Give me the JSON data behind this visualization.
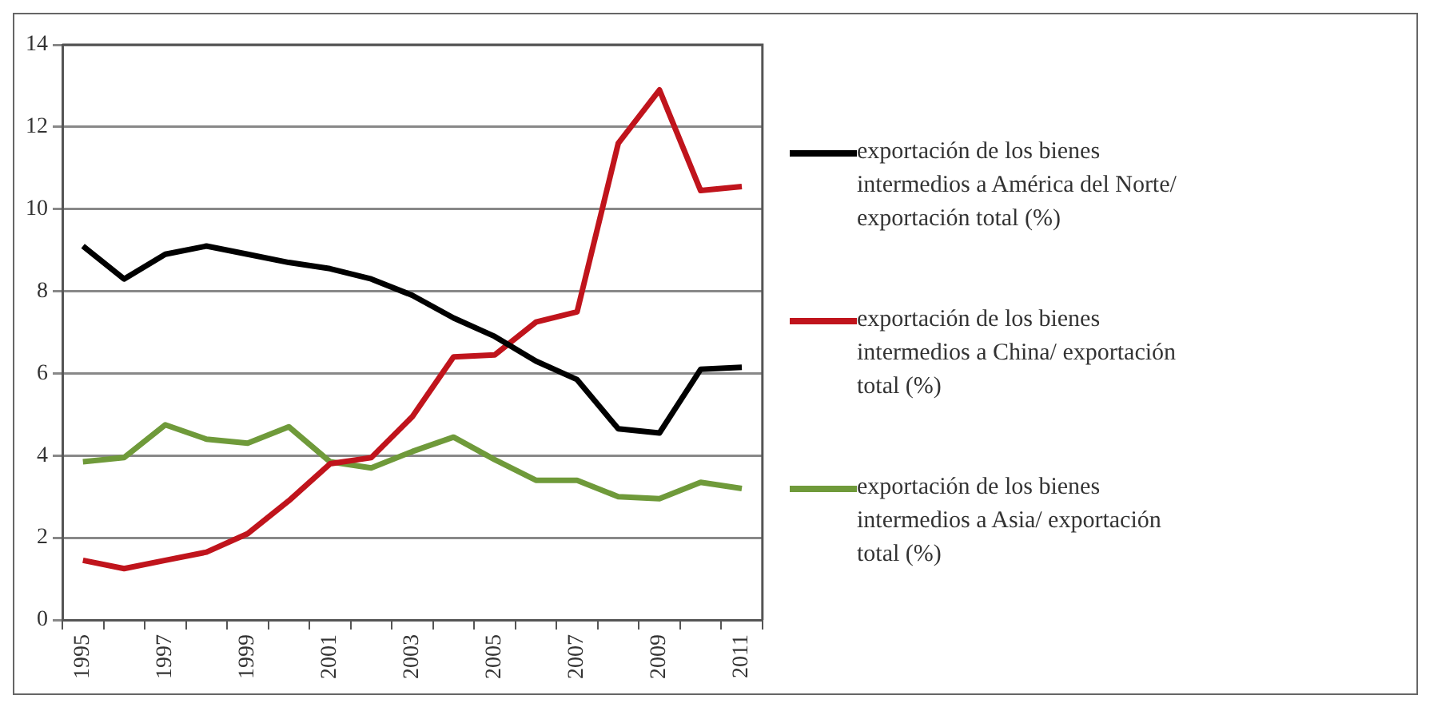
{
  "chart_data": {
    "type": "line",
    "categories": [
      "1995",
      null,
      "1997",
      null,
      "1999",
      null,
      "2001",
      null,
      "2003",
      null,
      "2005",
      null,
      "2007",
      null,
      "2009",
      null,
      "2011"
    ],
    "series": [
      {
        "name": "exportación de los bienes intermedios a América del Norte/ exportación total (%)",
        "color": "#000000",
        "values": [
          9.1,
          8.3,
          8.9,
          9.1,
          8.9,
          8.7,
          8.55,
          8.3,
          7.9,
          7.35,
          6.9,
          6.3,
          5.85,
          4.65,
          4.55,
          6.1,
          6.15
        ]
      },
      {
        "name": "exportación de los bienes intermedios a China/ exportación total (%)",
        "color": "#c0141c",
        "values": [
          1.45,
          1.25,
          1.45,
          1.65,
          2.1,
          2.9,
          3.8,
          3.95,
          4.95,
          6.4,
          6.45,
          7.25,
          7.5,
          11.6,
          12.9,
          10.45,
          10.55
        ]
      },
      {
        "name": "exportación de los bienes intermedios a Asia/ exportación total (%)",
        "color": "#6f9a3a",
        "values": [
          3.85,
          3.95,
          4.75,
          4.4,
          4.3,
          4.7,
          3.85,
          3.7,
          4.1,
          4.45,
          3.9,
          3.4,
          3.4,
          3.0,
          2.95,
          3.35,
          3.2
        ]
      }
    ],
    "ylim": [
      0,
      14
    ],
    "yticks": [
      0,
      2,
      4,
      6,
      8,
      10,
      12,
      14
    ],
    "grid": "y",
    "legend": "right",
    "marker": "none",
    "line_style": "solid"
  }
}
